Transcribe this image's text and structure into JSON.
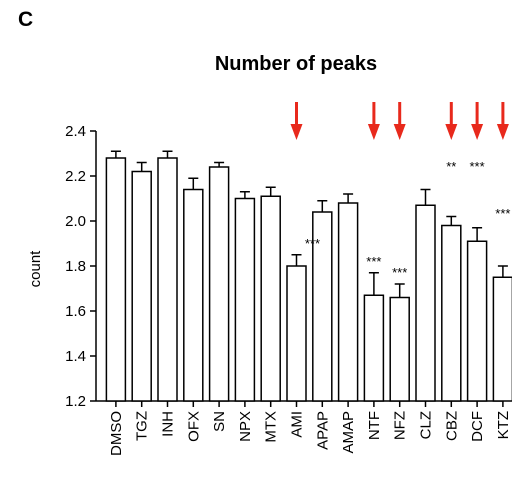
{
  "panel_label": "C",
  "chart_data": {
    "type": "bar",
    "title": "Number of peaks",
    "xlabel": "",
    "ylabel": "count",
    "ylim": [
      1.2,
      2.4
    ],
    "yticks": [
      "1.2",
      "1.4",
      "1.6",
      "1.8",
      "2.0",
      "2.2",
      "2.4"
    ],
    "categories": [
      "DMSO",
      "TGZ",
      "INH",
      "OFX",
      "SN",
      "NPX",
      "MTX",
      "AMI",
      "APAP",
      "AMAP",
      "NTF",
      "NFZ",
      "CLZ",
      "CBZ",
      "DCF",
      "KTZ"
    ],
    "values": [
      2.28,
      2.22,
      2.28,
      2.14,
      2.24,
      2.1,
      2.11,
      1.8,
      2.04,
      2.08,
      1.67,
      1.66,
      2.07,
      1.98,
      1.91,
      1.75
    ],
    "errors": [
      0.03,
      0.04,
      0.03,
      0.05,
      0.02,
      0.03,
      0.04,
      0.05,
      0.05,
      0.04,
      0.1,
      0.06,
      0.07,
      0.04,
      0.06,
      0.05
    ],
    "significance": [
      "",
      "",
      "",
      "",
      "",
      "",
      "",
      "***",
      "",
      "",
      "***",
      "***",
      "",
      "**",
      "***",
      "***"
    ],
    "arrows": [
      false,
      false,
      false,
      false,
      false,
      false,
      false,
      true,
      false,
      false,
      true,
      true,
      false,
      true,
      true,
      true
    ],
    "bar_color": "#ffffff",
    "edge_color": "#000000",
    "arrow_color": "#e8291c",
    "grid": false
  }
}
